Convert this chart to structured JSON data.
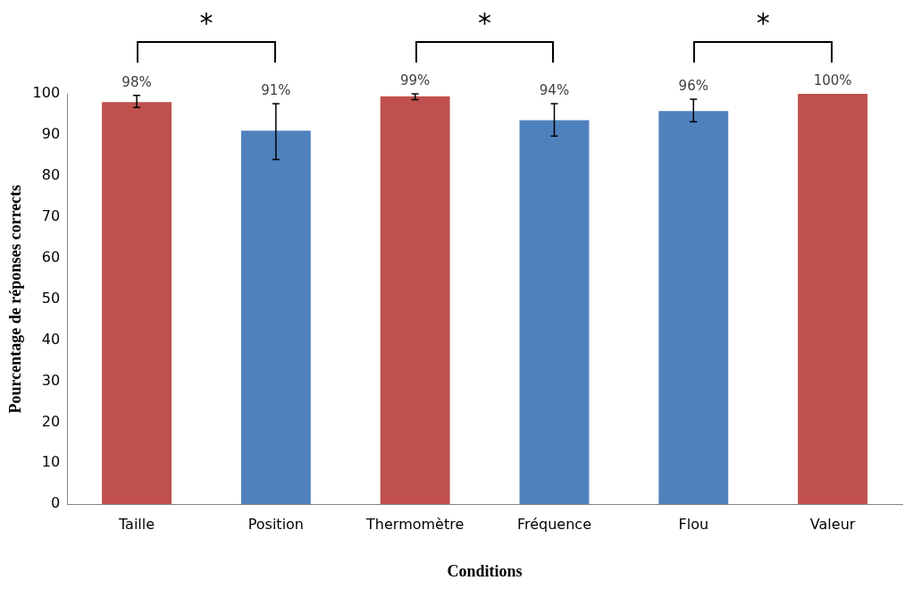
{
  "chart_data": {
    "type": "bar",
    "xlabel": "Conditions",
    "ylabel": "Pourcentage de réponses corrects",
    "categories": [
      "Taille",
      "Position",
      "Thermomètre",
      "Fréquence",
      "Flou",
      "Valeur"
    ],
    "values": [
      98.0,
      91.0,
      99.4,
      93.6,
      95.8,
      100
    ],
    "colors": [
      "#c0504d",
      "#4f81bd",
      "#c0504d",
      "#4f81bd",
      "#4f81bd",
      "#c0504d"
    ],
    "errors": [
      [
        96.7,
        99.6
      ],
      [
        84.0,
        97.6
      ],
      [
        98.6,
        100
      ],
      [
        89.7,
        97.6
      ],
      [
        93.2,
        98.7
      ],
      null
    ],
    "value_labels": [
      "98%",
      "91%",
      "99%",
      "94%",
      "96%",
      "100%"
    ],
    "annotations": [
      "*",
      "*",
      "*"
    ],
    "ylim": [
      0,
      100
    ],
    "yticks": [
      0,
      10,
      20,
      30,
      40,
      50,
      60,
      70,
      80,
      90,
      100
    ],
    "grid": false,
    "legend": false
  }
}
